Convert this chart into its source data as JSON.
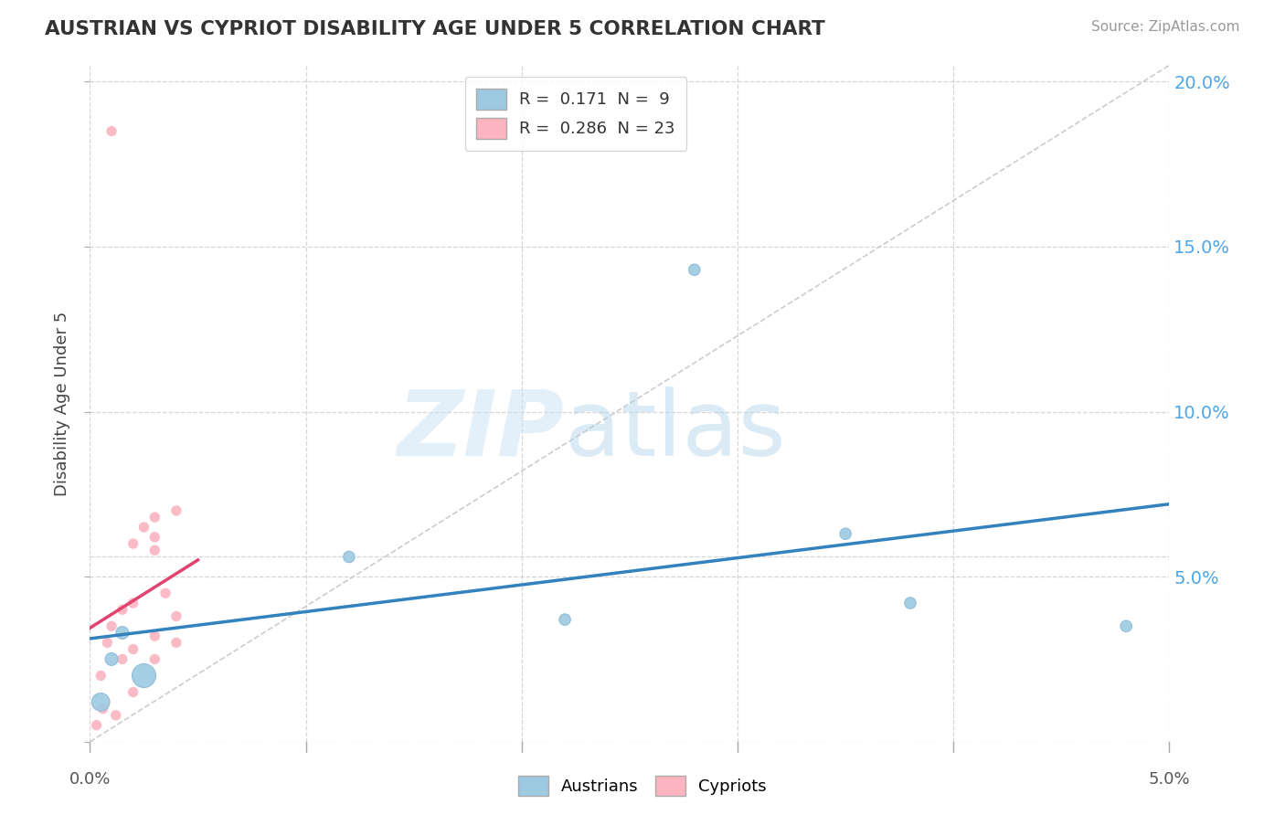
{
  "title": "AUSTRIAN VS CYPRIOT DISABILITY AGE UNDER 5 CORRELATION CHART",
  "source": "Source: ZipAtlas.com",
  "ylabel": "Disability Age Under 5",
  "xmin": 0.0,
  "xmax": 0.05,
  "ymin": 0.0,
  "ymax": 0.205,
  "yticks": [
    0.0,
    0.05,
    0.1,
    0.15,
    0.2
  ],
  "ytick_labels": [
    "",
    "5.0%",
    "10.0%",
    "15.0%",
    "20.0%"
  ],
  "xticks": [
    0.0,
    0.01,
    0.02,
    0.03,
    0.04,
    0.05
  ],
  "blue_color": "#9ecae1",
  "pink_color": "#fbb4c0",
  "blue_line_color": "#3182bd",
  "pink_line_color": "#e0446e",
  "diagonal_color": "#cccccc",
  "background_color": "#ffffff",
  "grid_color": "#cccccc",
  "austrians_x": [
    0.0005,
    0.001,
    0.0015,
    0.0025,
    0.012,
    0.022,
    0.028,
    0.035,
    0.038,
    0.048
  ],
  "austrians_y": [
    0.012,
    0.025,
    0.033,
    0.02,
    0.056,
    0.037,
    0.143,
    0.063,
    0.042,
    0.035
  ],
  "austrians_size": [
    200,
    100,
    100,
    350,
    80,
    80,
    80,
    80,
    80,
    80
  ],
  "cypriots_x": [
    0.0003,
    0.0005,
    0.0006,
    0.0008,
    0.001,
    0.001,
    0.0012,
    0.0015,
    0.0015,
    0.002,
    0.002,
    0.002,
    0.002,
    0.0025,
    0.003,
    0.003,
    0.003,
    0.003,
    0.003,
    0.0035,
    0.004,
    0.004,
    0.004
  ],
  "cypriots_y": [
    0.005,
    0.02,
    0.01,
    0.03,
    0.035,
    0.185,
    0.008,
    0.025,
    0.04,
    0.028,
    0.06,
    0.042,
    0.015,
    0.065,
    0.032,
    0.058,
    0.062,
    0.025,
    0.068,
    0.045,
    0.07,
    0.03,
    0.038
  ],
  "cypriots_size": [
    80,
    80,
    80,
    80,
    80,
    80,
    80,
    80,
    80,
    80,
    80,
    80,
    80,
    80,
    80,
    80,
    80,
    80,
    80,
    80,
    80,
    80,
    80
  ]
}
